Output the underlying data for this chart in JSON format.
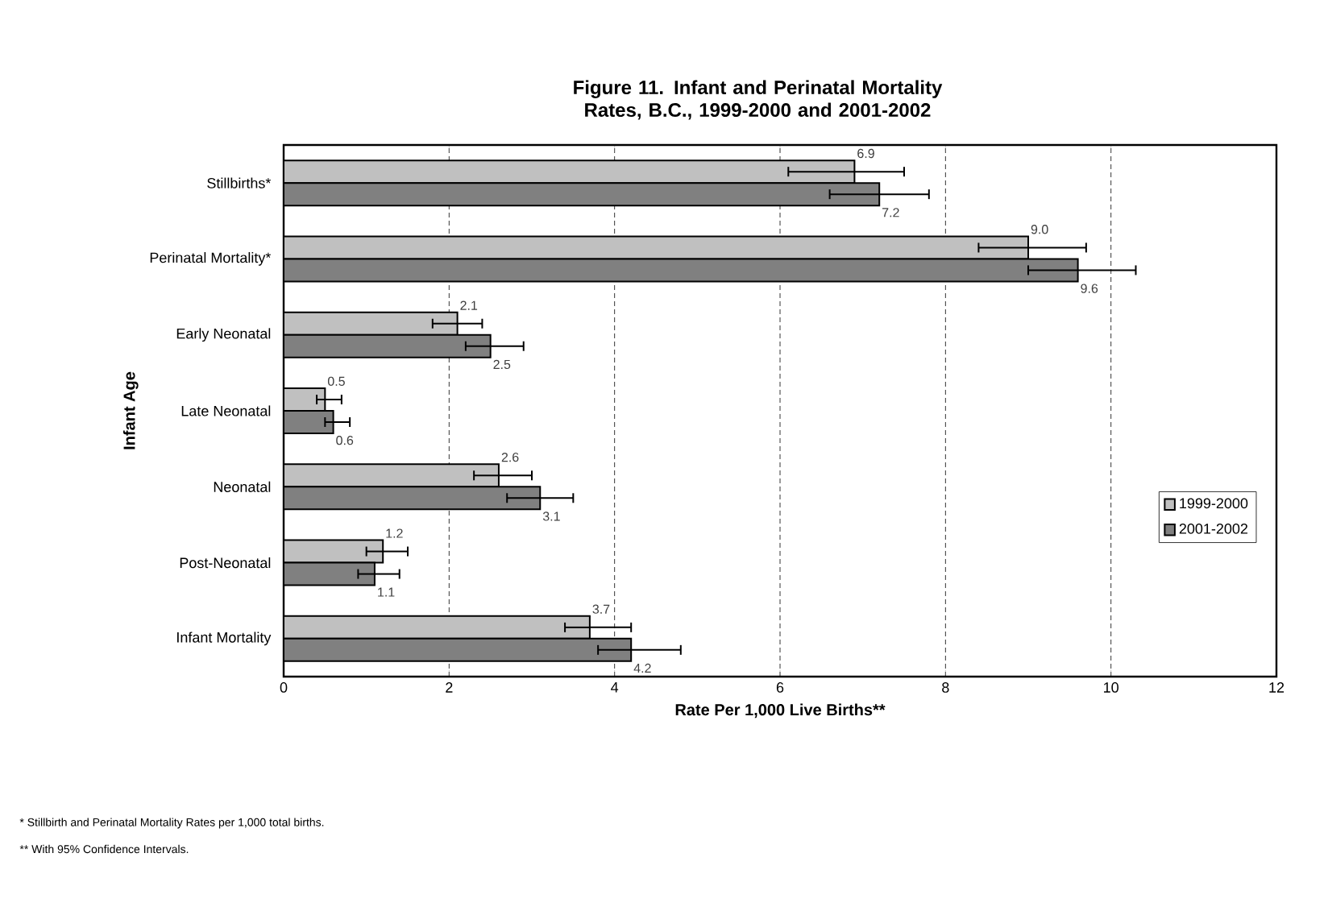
{
  "chart_data": {
    "type": "bar",
    "orientation": "horizontal",
    "title": "Figure 11.  Infant and Perinatal Mortality Rates, B.C., 1999-2000 and 2001-2002",
    "xlabel": "Rate Per 1,000 Live Births**",
    "ylabel": "Infant Age",
    "categories": [
      "Stillbirths*",
      "Perinatal Mortality*",
      "Early Neonatal",
      "Late Neonatal",
      "Neonatal",
      "Post-Neonatal",
      "Infant Mortality"
    ],
    "series": [
      {
        "name": "1999-2000",
        "color": "#c0c0c0",
        "values": [
          6.9,
          9.0,
          2.1,
          0.5,
          2.6,
          1.2,
          3.7
        ],
        "value_labels": [
          "6.9",
          "9.0",
          "2.1",
          "0.5",
          "2.6",
          "1.2",
          "3.7"
        ],
        "errors": [
          [
            6.1,
            7.5
          ],
          [
            8.4,
            9.7
          ],
          [
            1.8,
            2.4
          ],
          [
            0.4,
            0.7
          ],
          [
            2.3,
            3.0
          ],
          [
            1.0,
            1.5
          ],
          [
            3.4,
            4.2
          ]
        ]
      },
      {
        "name": "2001-2002",
        "color": "#808080",
        "values": [
          7.2,
          9.6,
          2.5,
          0.6,
          3.1,
          1.1,
          4.2
        ],
        "value_labels": [
          "7.2",
          "9.6",
          "2.5",
          "0.6",
          "3.1",
          "1.1",
          "4.2"
        ],
        "errors": [
          [
            6.6,
            7.8
          ],
          [
            9.0,
            10.3
          ],
          [
            2.2,
            2.9
          ],
          [
            0.5,
            0.8
          ],
          [
            2.7,
            3.5
          ],
          [
            0.9,
            1.4
          ],
          [
            3.8,
            4.8
          ]
        ]
      }
    ],
    "xlim": [
      0,
      12
    ],
    "xticks": [
      0,
      2,
      4,
      6,
      8,
      10,
      12
    ],
    "grid": "x",
    "legend": "right",
    "annotations": [
      "*  Stillbirth and Perinatal Mortality Rates per 1,000 total births.",
      "** With 95% Confidence Intervals."
    ]
  }
}
